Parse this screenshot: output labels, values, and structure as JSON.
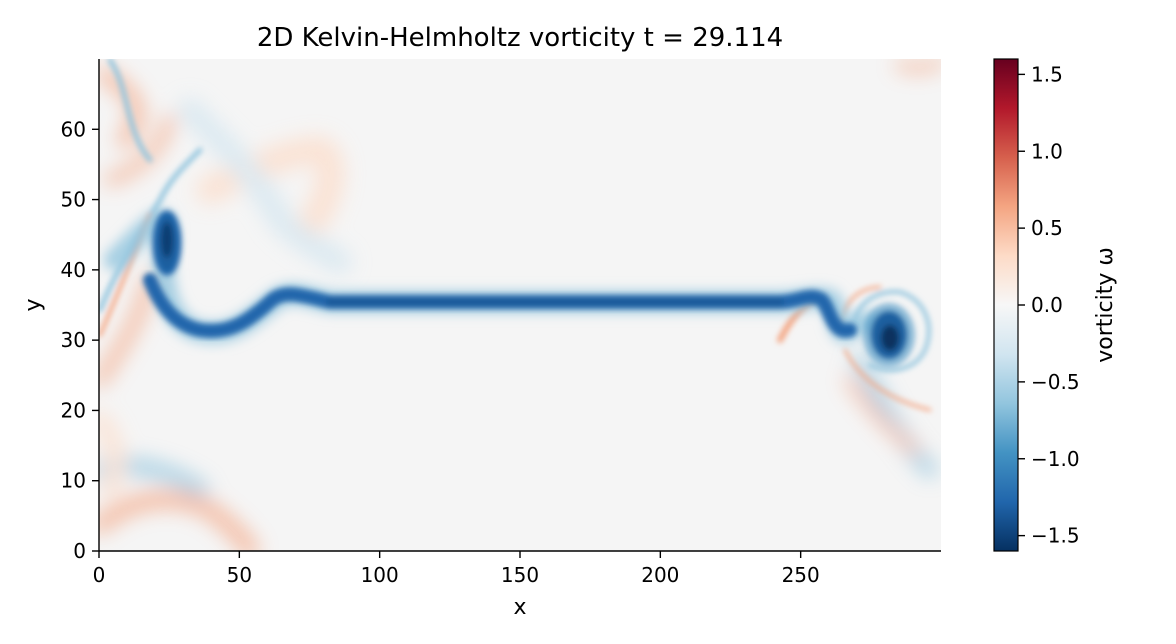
{
  "chart_data": {
    "type": "heatmap",
    "title": "2D Kelvin-Helmholtz vorticity  t = 29.114",
    "xlabel": "x",
    "ylabel": "y",
    "xlim": [
      0,
      300
    ],
    "ylim": [
      0,
      70
    ],
    "x_ticks": [
      0,
      50,
      100,
      150,
      200,
      250
    ],
    "y_ticks": [
      0,
      10,
      20,
      30,
      40,
      50,
      60
    ],
    "colorbar": {
      "label": "vorticity ω",
      "colormap": "RdBu_r",
      "range": [
        -1.6,
        1.6
      ],
      "ticks": [
        "1.5",
        "1.0",
        "0.5",
        "0.0",
        "−0.5",
        "−1.0",
        "−1.5"
      ],
      "tick_values": [
        1.5,
        1.0,
        0.5,
        0.0,
        -0.5,
        -1.0,
        -1.5
      ]
    },
    "colors": {
      "background_field": "#f5f5f5",
      "strong_negative": "#053061",
      "negative": "#2166ac",
      "weak_negative": "#92c5de",
      "weak_positive": "#f4a582",
      "positive": "#d6604d",
      "strong_positive": "#67001f"
    },
    "features": [
      {
        "kind": "shear_layer",
        "x_range": [
          70,
          250
        ],
        "y": 35,
        "vorticity": -1.3
      },
      {
        "kind": "vortex",
        "x": 24,
        "y": 44,
        "vorticity": -1.5
      },
      {
        "kind": "vortex",
        "x": 281,
        "y": 30,
        "vorticity": -1.6
      },
      {
        "kind": "vortex",
        "x": 255,
        "y": 35,
        "vorticity": -1.3
      }
    ]
  }
}
